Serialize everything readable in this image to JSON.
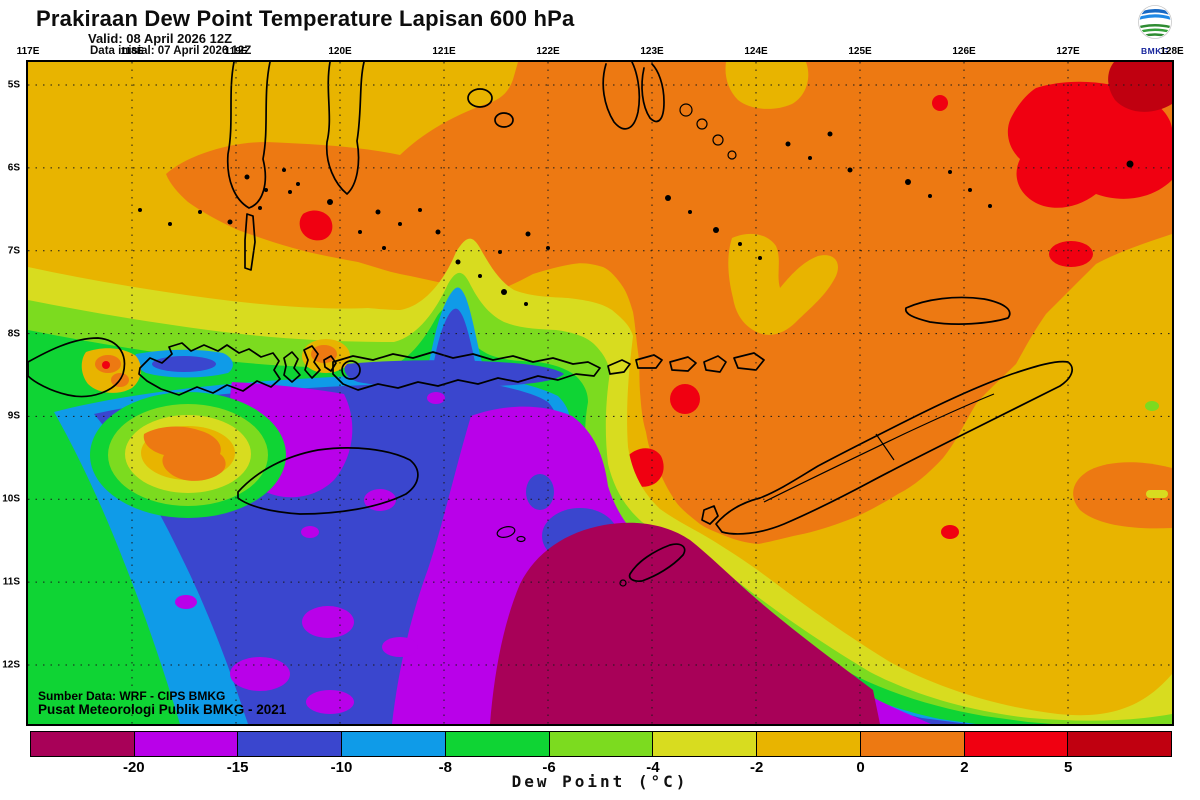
{
  "header": {
    "title": "Prakiraan Dew Point Temperature Lapisan 600 hPa",
    "valid_label": "Valid: 08 April 2026 12Z",
    "init_label": "Data inisial: 07 April 2026 12Z",
    "logo_text": "BMKG"
  },
  "map": {
    "top_axis": [
      "117E",
      "118E",
      "119E",
      "120E",
      "121E",
      "122E",
      "123E",
      "124E",
      "125E",
      "126E",
      "127E",
      "128E"
    ],
    "left_axis": [
      "5S",
      "6S",
      "7S",
      "8S",
      "9S",
      "10S",
      "11S",
      "12S"
    ],
    "source_line1": "Sumber Data: WRF - CIPS BMKG",
    "source_line2": "Pusat Meteorologi Publik BMKG - 2021"
  },
  "colorbar": {
    "label": "Dew Point (°C)",
    "ticks": [
      "-20",
      "-15",
      "-10",
      "-8",
      "-6",
      "-4",
      "-2",
      "0",
      "2",
      "5"
    ],
    "colors": [
      "#a80158",
      "#b901e9",
      "#3a46ce",
      "#0f9be8",
      "#0fd434",
      "#7cdb1f",
      "#d8dc1f",
      "#e8b400",
      "#ed7912",
      "#f00011",
      "#c00010"
    ]
  },
  "chart_data": {
    "type": "heatmap",
    "title": "Prakiraan Dew Point Temperature Lapisan 600 hPa",
    "variable": "Dew point temperature at 600 hPa",
    "units": "°C",
    "model_source": "WRF - CIPS BMKG",
    "valid_time": "08 April 2026 12Z",
    "init_time": "07 April 2026 12Z",
    "lon_range": [
      "117E",
      "128E"
    ],
    "lat_range": [
      "5S",
      "12S"
    ],
    "grid": "dotted graticule every 1 degree",
    "levels": [
      -20,
      -15,
      -10,
      -8,
      -6,
      -4,
      -2,
      0,
      2,
      5
    ],
    "palette": [
      {
        "range": "below -20",
        "color": "#a80158"
      },
      {
        "range": "-20 to -15",
        "color": "#b901e9"
      },
      {
        "range": "-15 to -10",
        "color": "#3a46ce"
      },
      {
        "range": "-10 to -8",
        "color": "#0f9be8"
      },
      {
        "range": "-8 to -6",
        "color": "#0fd434"
      },
      {
        "range": "-6 to -4",
        "color": "#7cdb1f"
      },
      {
        "range": "-4 to -2",
        "color": "#d8dc1f"
      },
      {
        "range": "-2 to 0",
        "color": "#e8b400"
      },
      {
        "range": "0 to 2",
        "color": "#ed7912"
      },
      {
        "range": "2 to 5",
        "color": "#f00011"
      },
      {
        "range": "above 5",
        "color": "#c00010"
      }
    ],
    "features": [
      "Moist air (dew point 0 to 2 C, orange) covers the north and east of the domain: southern Sulawesi seas, Banda Sea and the Timor region",
      "Cells above 2 C (red) near 120.9E 6.7S, around 123.2E 8.6S and 123E 9.2S, near 125.9E 10.3S, and a large area 126-128E 5-7S with a core above 5 C at the NE corner",
      "Dew point -2 to 0 C (amber) over the NW quadrant (Makassar Strait side) and SE of Timor",
      "Sharp gradient along the Lesser Sunda island chain near 8-9S, dropping southward through the -4, -6, -8 and -10 C bands",
      "Very dry air -15 to -10 C (blue) over the SW Indian Ocean quadrant south of Sumbawa and Flores",
      "-20 to -15 C (purple) pockets south of the strait near 119-120E 8.6-9.6S and a large region 121-125E below 9.5S",
      "Driest core below -20 C (dark magenta) south of Rote/Timor, about 121-126E 10.5S to the southern edge",
      "Local moist bullseye reaching 0-2 C centred near 119.3E 9.5S over Sumba island",
      "Green-to-yellow transition collar wraps the dry mass and runs diagonally to the SE corner"
    ]
  }
}
